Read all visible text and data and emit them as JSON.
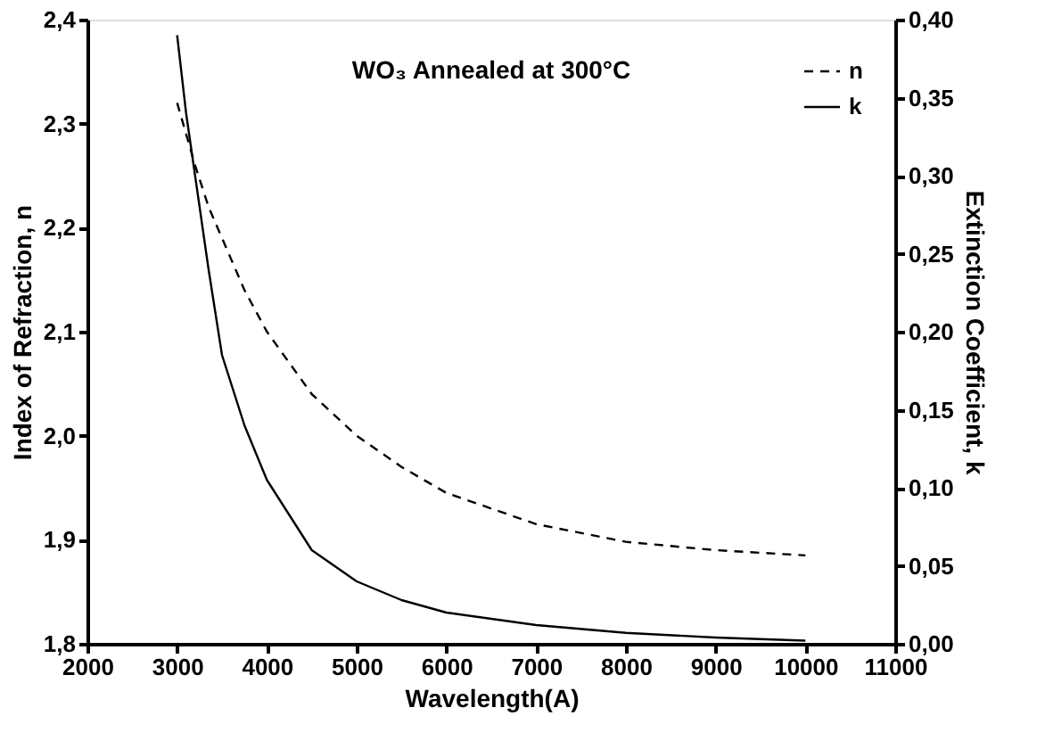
{
  "chart_data": {
    "type": "line",
    "title": "WO₃ Annealed at 300°C",
    "xlabel": "Wavelength(A)",
    "ylabel": "Index of Refraction, n",
    "y2label": "Extinction Coefficient, k",
    "x": [
      3000,
      3100,
      3200,
      3350,
      3500,
      3750,
      4000,
      4500,
      5000,
      5500,
      6000,
      7000,
      8000,
      9000,
      10000
    ],
    "series": [
      {
        "name": "n",
        "color": "#000000",
        "line_style": "dashed",
        "values": [
          2.32,
          2.29,
          2.26,
          2.22,
          2.19,
          2.14,
          2.1,
          2.04,
          2.0,
          1.97,
          1.945,
          1.915,
          1.898,
          1.89,
          1.885
        ]
      },
      {
        "name": "k",
        "color": "#000000",
        "line_style": "solid",
        "axis": "y2",
        "values": [
          0.39,
          0.34,
          0.3,
          0.24,
          0.185,
          0.14,
          0.105,
          0.06,
          0.04,
          0.028,
          0.02,
          0.012,
          0.007,
          0.004,
          0.002
        ]
      }
    ],
    "xlim": [
      2000,
      11000
    ],
    "xticks": [
      2000,
      3000,
      4000,
      5000,
      6000,
      7000,
      8000,
      9000,
      10000,
      11000
    ],
    "ylim": [
      1.8,
      2.4
    ],
    "yticks": [
      {
        "value": 1.8,
        "label": "1,8"
      },
      {
        "value": 1.9,
        "label": "1,9"
      },
      {
        "value": 2.0,
        "label": "2,0"
      },
      {
        "value": 2.1,
        "label": "2,1"
      },
      {
        "value": 2.2,
        "label": "2,2"
      },
      {
        "value": 2.3,
        "label": "2,3"
      },
      {
        "value": 2.4,
        "label": "2,4"
      }
    ],
    "y2lim": [
      0,
      0.4
    ],
    "y2ticks": [
      {
        "value": 0,
        "label": "0,00"
      },
      {
        "value": 0.05,
        "label": "0,05"
      },
      {
        "value": 0.1,
        "label": "0,10"
      },
      {
        "value": 0.15,
        "label": "0,15"
      },
      {
        "value": 0.2,
        "label": "0,20"
      },
      {
        "value": 0.25,
        "label": "0,25"
      },
      {
        "value": 0.3,
        "label": "0,30"
      },
      {
        "value": 0.35,
        "label": "0,35"
      },
      {
        "value": 0.4,
        "label": "0,40"
      }
    ],
    "legend": "top right",
    "grid": false
  }
}
